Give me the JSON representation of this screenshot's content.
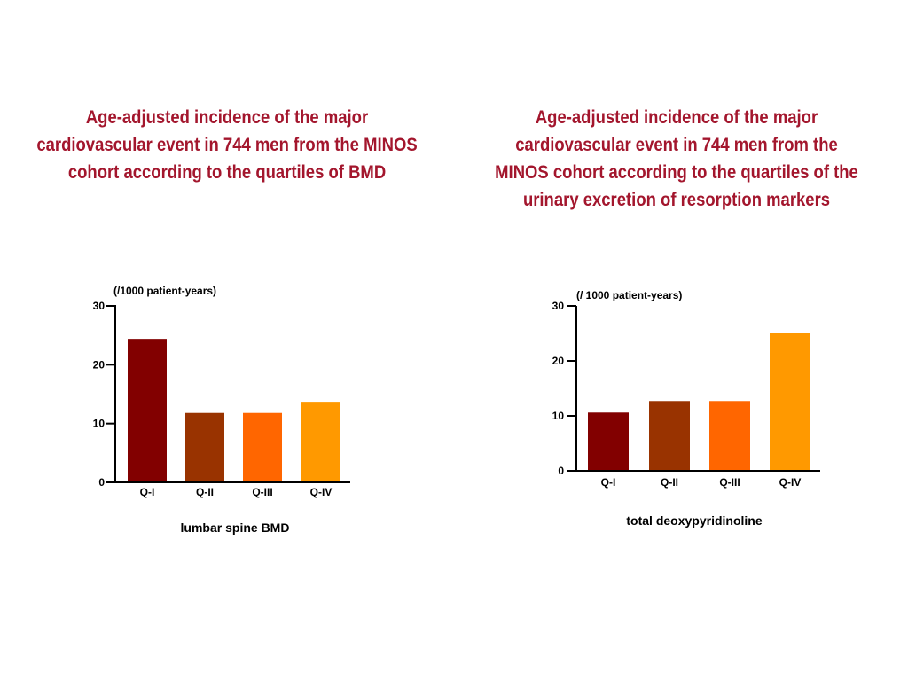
{
  "titles": {
    "left": "Age-adjusted incidence of the major cardiovascular event in 744 men from the MINOS cohort according to the quartiles of BMD",
    "right": "Age-adjusted incidence of the major cardiovascular event in 744 men from the MINOS cohort according to the quartiles of the urinary excretion of resorption markers"
  },
  "chart_data": [
    {
      "type": "bar",
      "unit_label": "(/1000 patient-years)",
      "xlabel": "lumbar spine BMD",
      "categories": [
        "Q-I",
        "Q-II",
        "Q-III",
        "Q-IV"
      ],
      "values": [
        24.4,
        11.8,
        11.8,
        13.7
      ],
      "colors": [
        "#820000",
        "#993300",
        "#ff6600",
        "#ff9900"
      ],
      "yticks": [
        0,
        10,
        20,
        30
      ],
      "ylim": [
        0,
        30
      ],
      "grid": false
    },
    {
      "type": "bar",
      "unit_label": "(/ 1000 patient-years)",
      "xlabel": "total deoxypyridinoline",
      "categories": [
        "Q-I",
        "Q-II",
        "Q-III",
        "Q-IV"
      ],
      "values": [
        10.6,
        12.7,
        12.7,
        25.0
      ],
      "colors": [
        "#820000",
        "#993300",
        "#ff6600",
        "#ff9900"
      ],
      "yticks": [
        0,
        10,
        20,
        30
      ],
      "ylim": [
        0,
        30
      ],
      "grid": false
    }
  ]
}
